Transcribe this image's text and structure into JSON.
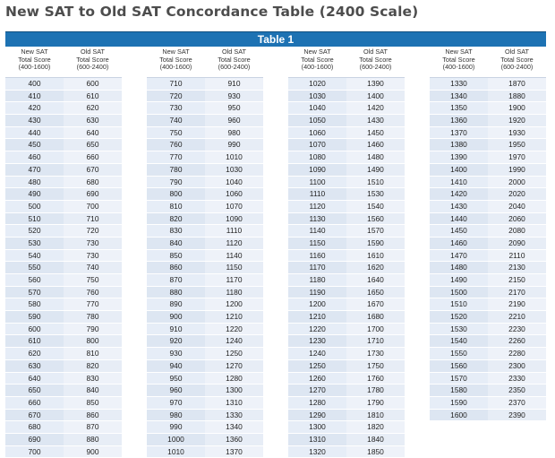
{
  "title": "New SAT to Old SAT Concordance Table (2400 Scale)",
  "table_label": "Table 1",
  "headers": {
    "new": [
      "New SAT",
      "Total Score",
      "(400-1600)"
    ],
    "old": [
      "Old SAT",
      "Total Score",
      "(600-2400)"
    ]
  },
  "columns": [
    {
      "rows": [
        [
          "400",
          "600"
        ],
        [
          "410",
          "610"
        ],
        [
          "420",
          "620"
        ],
        [
          "430",
          "630"
        ],
        [
          "440",
          "640"
        ],
        [
          "450",
          "650"
        ],
        [
          "460",
          "660"
        ],
        [
          "470",
          "670"
        ],
        [
          "480",
          "680"
        ],
        [
          "490",
          "690"
        ],
        [
          "500",
          "700"
        ],
        [
          "510",
          "710"
        ],
        [
          "520",
          "720"
        ],
        [
          "530",
          "730"
        ],
        [
          "540",
          "730"
        ],
        [
          "550",
          "740"
        ],
        [
          "560",
          "750"
        ],
        [
          "570",
          "760"
        ],
        [
          "580",
          "770"
        ],
        [
          "590",
          "780"
        ],
        [
          "600",
          "790"
        ],
        [
          "610",
          "800"
        ],
        [
          "620",
          "810"
        ],
        [
          "630",
          "820"
        ],
        [
          "640",
          "830"
        ],
        [
          "650",
          "840"
        ],
        [
          "660",
          "850"
        ],
        [
          "670",
          "860"
        ],
        [
          "680",
          "870"
        ],
        [
          "690",
          "880"
        ],
        [
          "700",
          "900"
        ]
      ]
    },
    {
      "rows": [
        [
          "710",
          "910"
        ],
        [
          "720",
          "930"
        ],
        [
          "730",
          "950"
        ],
        [
          "740",
          "960"
        ],
        [
          "750",
          "980"
        ],
        [
          "760",
          "990"
        ],
        [
          "770",
          "1010"
        ],
        [
          "780",
          "1030"
        ],
        [
          "790",
          "1040"
        ],
        [
          "800",
          "1060"
        ],
        [
          "810",
          "1070"
        ],
        [
          "820",
          "1090"
        ],
        [
          "830",
          "1110"
        ],
        [
          "840",
          "1120"
        ],
        [
          "850",
          "1140"
        ],
        [
          "860",
          "1150"
        ],
        [
          "870",
          "1170"
        ],
        [
          "880",
          "1180"
        ],
        [
          "890",
          "1200"
        ],
        [
          "900",
          "1210"
        ],
        [
          "910",
          "1220"
        ],
        [
          "920",
          "1240"
        ],
        [
          "930",
          "1250"
        ],
        [
          "940",
          "1270"
        ],
        [
          "950",
          "1280"
        ],
        [
          "960",
          "1300"
        ],
        [
          "970",
          "1310"
        ],
        [
          "980",
          "1330"
        ],
        [
          "990",
          "1340"
        ],
        [
          "1000",
          "1360"
        ],
        [
          "1010",
          "1370"
        ]
      ]
    },
    {
      "rows": [
        [
          "1020",
          "1390"
        ],
        [
          "1030",
          "1400"
        ],
        [
          "1040",
          "1420"
        ],
        [
          "1050",
          "1430"
        ],
        [
          "1060",
          "1450"
        ],
        [
          "1070",
          "1460"
        ],
        [
          "1080",
          "1480"
        ],
        [
          "1090",
          "1490"
        ],
        [
          "1100",
          "1510"
        ],
        [
          "1110",
          "1530"
        ],
        [
          "1120",
          "1540"
        ],
        [
          "1130",
          "1560"
        ],
        [
          "1140",
          "1570"
        ],
        [
          "1150",
          "1590"
        ],
        [
          "1160",
          "1610"
        ],
        [
          "1170",
          "1620"
        ],
        [
          "1180",
          "1640"
        ],
        [
          "1190",
          "1650"
        ],
        [
          "1200",
          "1670"
        ],
        [
          "1210",
          "1680"
        ],
        [
          "1220",
          "1700"
        ],
        [
          "1230",
          "1710"
        ],
        [
          "1240",
          "1730"
        ],
        [
          "1250",
          "1750"
        ],
        [
          "1260",
          "1760"
        ],
        [
          "1270",
          "1780"
        ],
        [
          "1280",
          "1790"
        ],
        [
          "1290",
          "1810"
        ],
        [
          "1300",
          "1820"
        ],
        [
          "1310",
          "1840"
        ],
        [
          "1320",
          "1850"
        ]
      ]
    },
    {
      "rows": [
        [
          "1330",
          "1870"
        ],
        [
          "1340",
          "1880"
        ],
        [
          "1350",
          "1900"
        ],
        [
          "1360",
          "1920"
        ],
        [
          "1370",
          "1930"
        ],
        [
          "1380",
          "1950"
        ],
        [
          "1390",
          "1970"
        ],
        [
          "1400",
          "1990"
        ],
        [
          "1410",
          "2000"
        ],
        [
          "1420",
          "2020"
        ],
        [
          "1430",
          "2040"
        ],
        [
          "1440",
          "2060"
        ],
        [
          "1450",
          "2080"
        ],
        [
          "1460",
          "2090"
        ],
        [
          "1470",
          "2110"
        ],
        [
          "1480",
          "2130"
        ],
        [
          "1490",
          "2150"
        ],
        [
          "1500",
          "2170"
        ],
        [
          "1510",
          "2190"
        ],
        [
          "1520",
          "2210"
        ],
        [
          "1530",
          "2230"
        ],
        [
          "1540",
          "2260"
        ],
        [
          "1550",
          "2280"
        ],
        [
          "1560",
          "2300"
        ],
        [
          "1570",
          "2330"
        ],
        [
          "1580",
          "2350"
        ],
        [
          "1590",
          "2370"
        ],
        [
          "1600",
          "2390"
        ]
      ]
    }
  ]
}
